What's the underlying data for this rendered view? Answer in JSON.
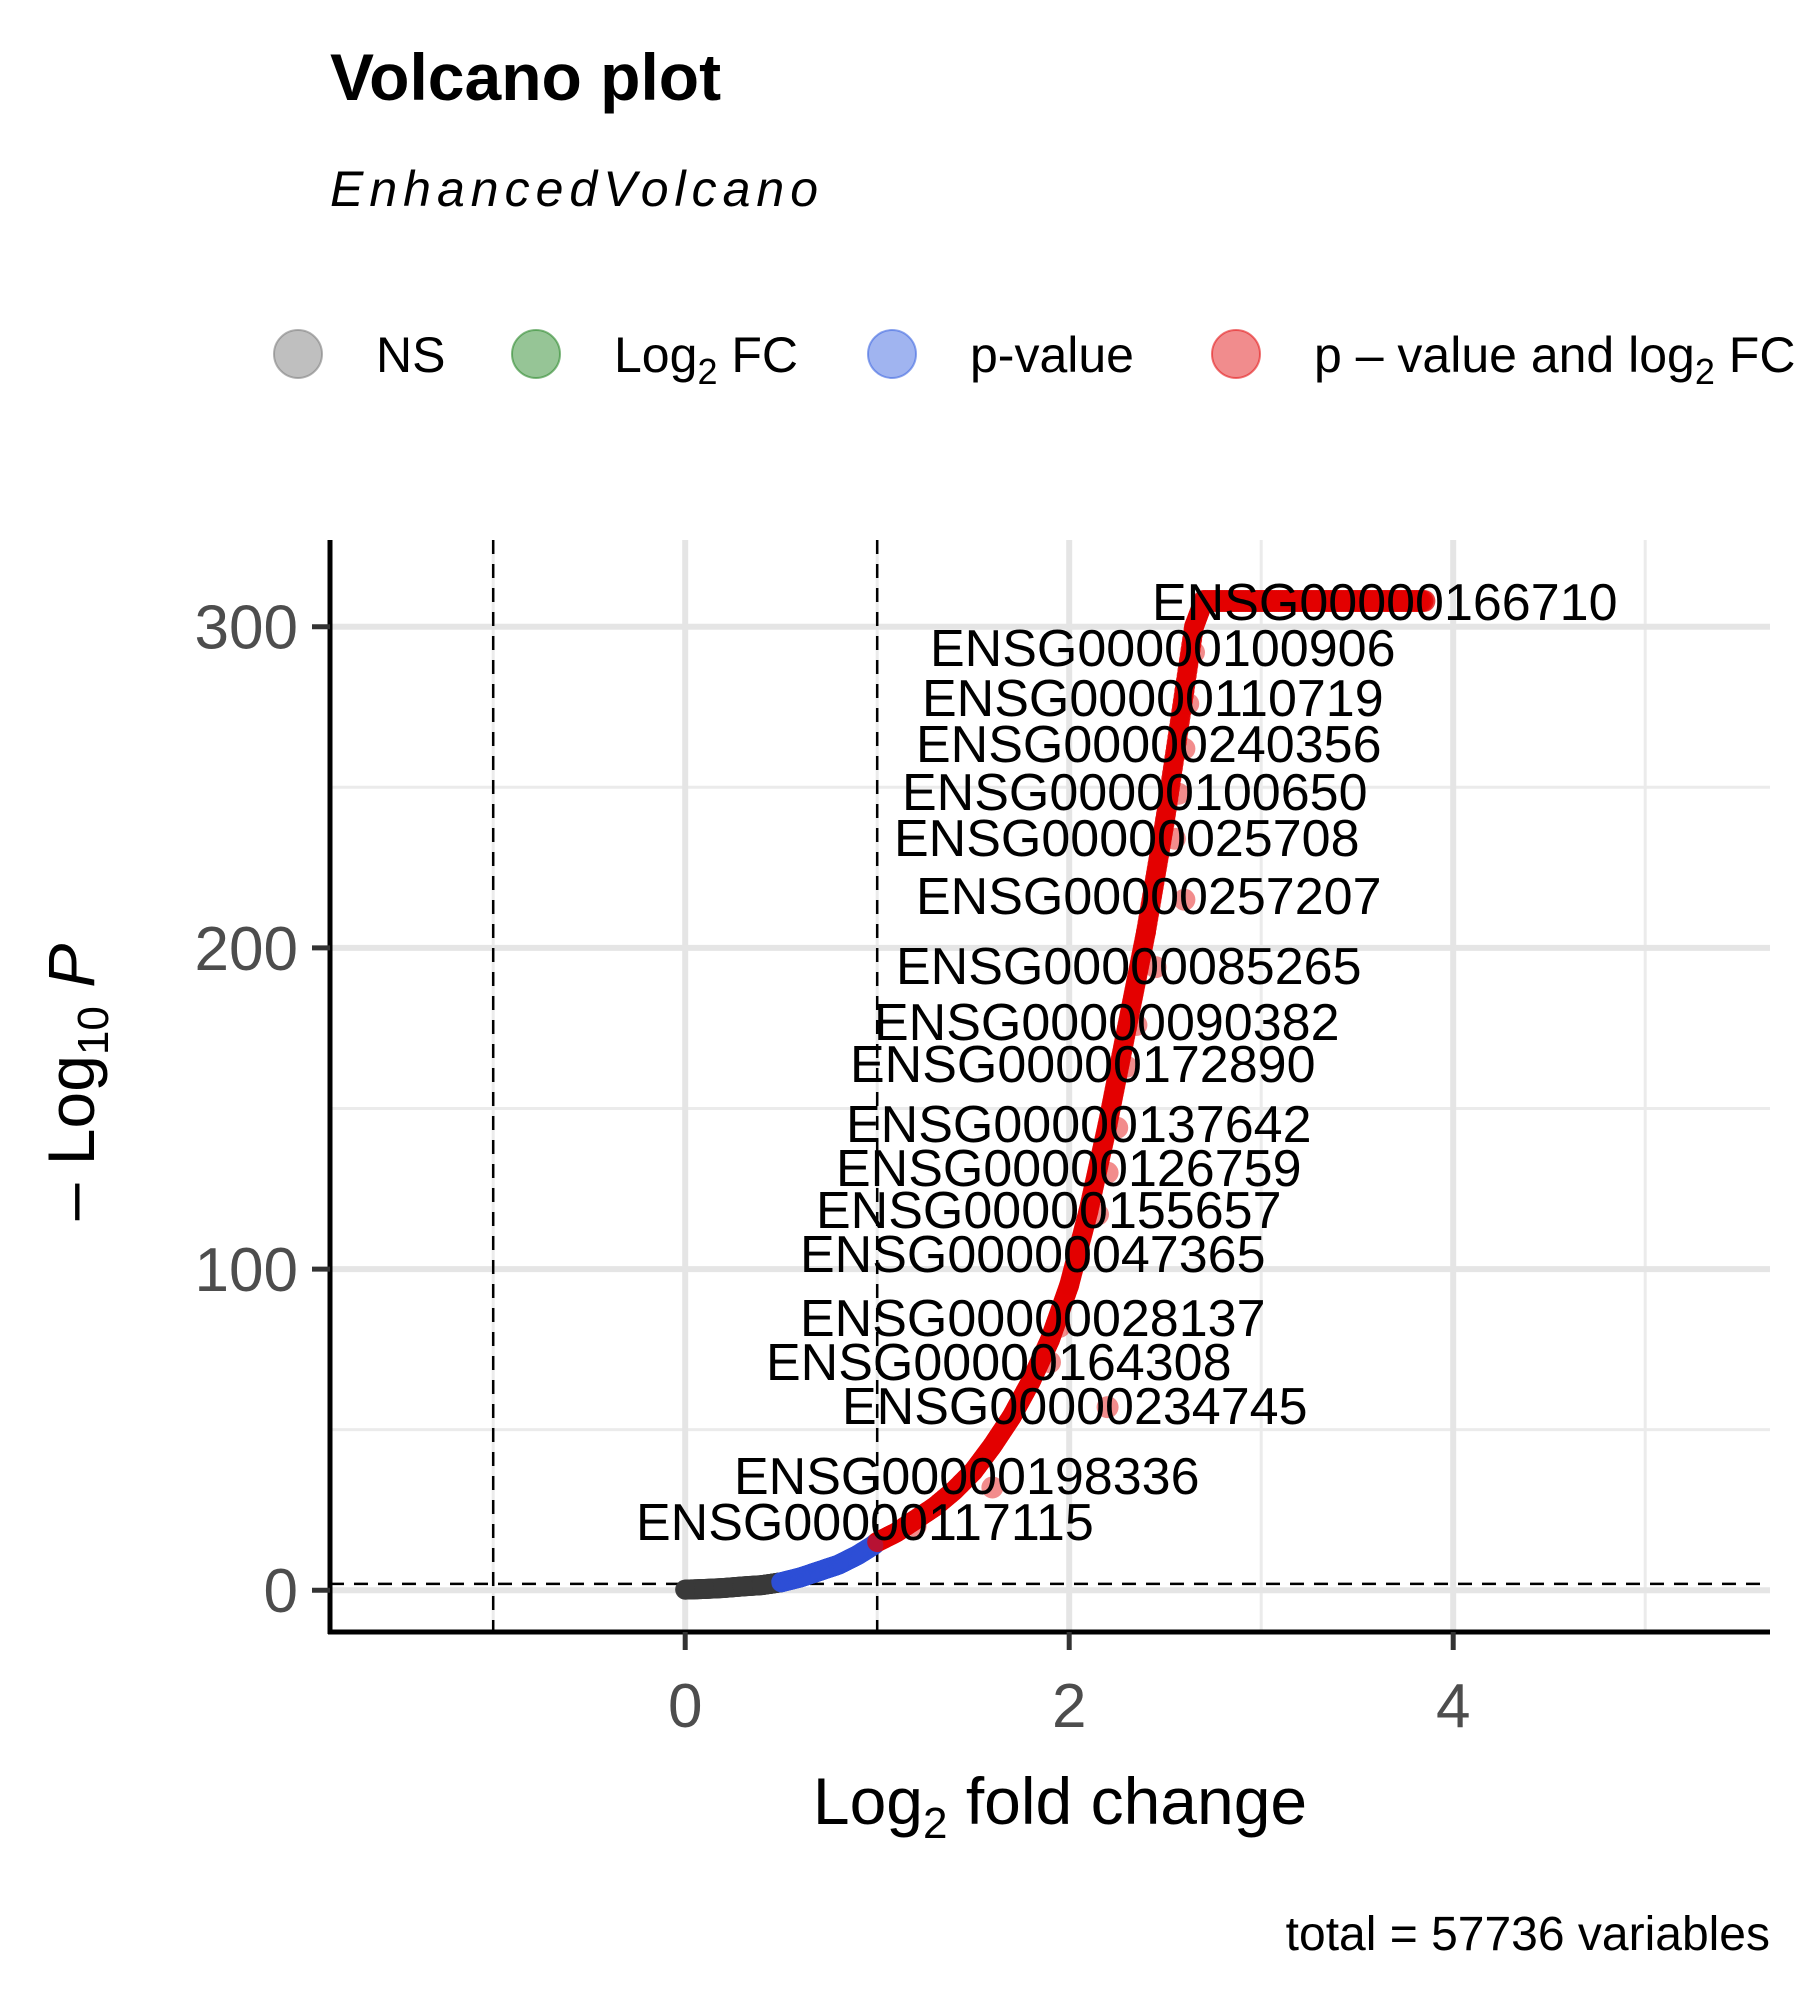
{
  "chart_data": {
    "type": "scatter",
    "title": "Volcano plot",
    "subtitle": "EnhancedVolcano",
    "caption": "total = 57736 variables",
    "xlabel": "Log2 fold change",
    "ylabel": "-Log10 P",
    "xlim": [
      -1.85,
      5.65
    ],
    "ylim": [
      -13,
      327
    ],
    "x_ticks": [
      0,
      2,
      4
    ],
    "y_ticks": [
      0,
      100,
      200,
      300
    ],
    "fc_cutoff": 1,
    "p_cutoff_neglog10": 2,
    "legend": {
      "position": "top",
      "items": [
        {
          "key": "ns",
          "label": "NS",
          "color": "#808080"
        },
        {
          "key": "fc",
          "label": "Log",
          "sub": "2",
          "suffix": " FC",
          "color": "#2e8b2e"
        },
        {
          "key": "p",
          "label": "p-value",
          "color": "#4169e1"
        },
        {
          "key": "both",
          "label": "p – value and log",
          "sub": "2",
          "suffix": " FC",
          "color": "#e41a1c"
        }
      ]
    },
    "colors": {
      "ns": "#3a3a3a",
      "fc": "#2e8b2e",
      "p": "#2d4fd6",
      "both": "#e30000"
    },
    "series": [
      {
        "name": "NS",
        "points": [
          [
            0.0,
            0.2
          ],
          [
            0.1,
            0.4
          ],
          [
            0.2,
            0.7
          ],
          [
            0.3,
            1.2
          ],
          [
            0.4,
            1.6
          ]
        ]
      },
      {
        "name": "p-value",
        "points": [
          [
            0.5,
            2.5
          ],
          [
            0.6,
            4
          ],
          [
            0.7,
            6
          ],
          [
            0.8,
            8
          ],
          [
            0.9,
            11
          ],
          [
            0.98,
            14
          ]
        ]
      },
      {
        "name": "p - value and log2 FC",
        "points": [
          [
            1.0,
            15
          ],
          [
            1.1,
            18
          ],
          [
            1.2,
            22
          ],
          [
            1.3,
            26
          ],
          [
            1.4,
            31
          ],
          [
            1.5,
            37
          ],
          [
            1.6,
            45
          ],
          [
            1.7,
            54
          ],
          [
            1.8,
            65
          ],
          [
            1.9,
            78
          ],
          [
            2.0,
            95
          ],
          [
            2.1,
            118
          ],
          [
            2.2,
            145
          ],
          [
            2.3,
            175
          ],
          [
            2.4,
            205
          ],
          [
            2.5,
            240
          ],
          [
            2.6,
            280
          ],
          [
            2.65,
            300
          ],
          [
            2.7,
            308
          ],
          [
            3.0,
            308
          ],
          [
            3.4,
            308
          ],
          [
            3.8,
            308
          ]
        ]
      }
    ],
    "labels": [
      {
        "gene": "ENSG00000166710",
        "x": 2.7,
        "y": 308
      },
      {
        "gene": "ENSG00000100906",
        "x": 2.65,
        "y": 292
      },
      {
        "gene": "ENSG00000110719",
        "x": 2.62,
        "y": 276
      },
      {
        "gene": "ENSG00000240356",
        "x": 2.6,
        "y": 262
      },
      {
        "gene": "ENSG00000100650",
        "x": 2.57,
        "y": 248
      },
      {
        "gene": "ENSG00000025708",
        "x": 2.55,
        "y": 234
      },
      {
        "gene": "ENSG00000257207",
        "x": 2.6,
        "y": 215
      },
      {
        "gene": "ENSG00000085265",
        "x": 2.45,
        "y": 194
      },
      {
        "gene": "ENSG00000090382",
        "x": 2.35,
        "y": 176
      },
      {
        "gene": "ENSG00000172890",
        "x": 2.3,
        "y": 163
      },
      {
        "gene": "ENSG00000137642",
        "x": 2.25,
        "y": 144
      },
      {
        "gene": "ENSG00000126759",
        "x": 2.2,
        "y": 130
      },
      {
        "gene": "ENSG00000155657",
        "x": 2.15,
        "y": 117
      },
      {
        "gene": "ENSG00000047365",
        "x": 2.05,
        "y": 103
      },
      {
        "gene": "ENSG00000028137",
        "x": 1.95,
        "y": 82
      },
      {
        "gene": "ENSG00000164308",
        "x": 1.9,
        "y": 71
      },
      {
        "gene": "ENSG00000234745",
        "x": 2.2,
        "y": 57
      },
      {
        "gene": "ENSG00000198336",
        "x": 1.6,
        "y": 32
      },
      {
        "gene": "ENSG00000117115",
        "x": 1.2,
        "y": 20
      }
    ]
  }
}
